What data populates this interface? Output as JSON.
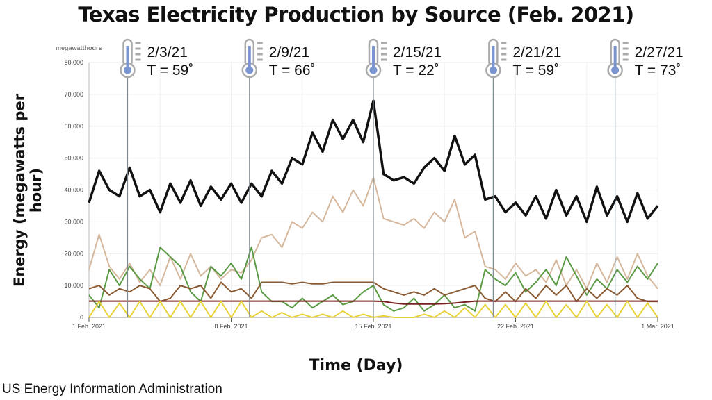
{
  "chart_data": {
    "type": "line",
    "title": "Texas Electricity Production by Source (Feb. 2021)",
    "xlabel": "Time (Day)",
    "ylabel": "Energy (megawatts per hour)",
    "unit_label": "megawatthours",
    "source": "US Energy Information Administration",
    "xlim": [
      "2021-02-01",
      "2021-03-01"
    ],
    "ylim": [
      0,
      80000
    ],
    "grid": true,
    "legend": "none",
    "x_ticks": [
      {
        "date": "2021-02-01",
        "label": "1 Feb. 2021"
      },
      {
        "date": "2021-02-08",
        "label": "8 Feb. 2021"
      },
      {
        "date": "2021-02-15",
        "label": "15 Feb. 2021"
      },
      {
        "date": "2021-02-22",
        "label": "22 Feb. 2021"
      },
      {
        "date": "2021-03-01",
        "label": "1 Mar. 2021"
      }
    ],
    "y_ticks": [
      0,
      10000,
      20000,
      30000,
      40000,
      50000,
      60000,
      70000,
      80000
    ],
    "y_tick_labels": [
      "0",
      "10,000",
      "20,000",
      "30,000",
      "40,000",
      "50,000",
      "60,000",
      "70,000",
      "80,000"
    ],
    "x_step_days": 0.5,
    "series": [
      {
        "color": "#111111",
        "values": [
          36000,
          46000,
          40000,
          38000,
          47000,
          38000,
          40000,
          33000,
          42000,
          36000,
          43000,
          35000,
          41000,
          37000,
          42000,
          36000,
          42000,
          38000,
          46000,
          42000,
          50000,
          48000,
          58000,
          52000,
          62000,
          56000,
          62000,
          55000,
          68000,
          45000,
          43000,
          44000,
          42000,
          47000,
          50000,
          46000,
          57000,
          48000,
          51000,
          37000,
          38000,
          33000,
          36000,
          32000,
          38000,
          31000,
          40000,
          32000,
          38000,
          30000,
          41000,
          32000,
          38000,
          30000,
          39000,
          31000,
          35000
        ]
      },
      {
        "color": "#d4b79c",
        "values": [
          15000,
          26000,
          16000,
          12000,
          17000,
          11000,
          15000,
          10000,
          19000,
          12000,
          20000,
          13000,
          16000,
          12000,
          15000,
          14000,
          18000,
          25000,
          26000,
          22000,
          30000,
          28000,
          33000,
          30000,
          38000,
          33000,
          40000,
          35000,
          44000,
          31000,
          30000,
          29000,
          31000,
          28000,
          33000,
          30000,
          37000,
          25000,
          27000,
          16000,
          15000,
          12000,
          17000,
          13000,
          15000,
          11000,
          18000,
          10000,
          15000,
          9000,
          17000,
          11000,
          19000,
          12000,
          20000,
          13000,
          9000
        ]
      },
      {
        "color": "#5b9a45",
        "values": [
          7000,
          3000,
          15000,
          10000,
          16000,
          12000,
          9000,
          22000,
          19000,
          16000,
          8000,
          5000,
          16000,
          13000,
          17000,
          12000,
          22000,
          8000,
          5000,
          5000,
          3000,
          6000,
          3000,
          5000,
          7000,
          4000,
          5000,
          8000,
          10000,
          4000,
          2000,
          3000,
          6000,
          2000,
          4000,
          7000,
          3000,
          4000,
          2000,
          15000,
          12000,
          10000,
          14000,
          8000,
          11000,
          15000,
          10000,
          19000,
          13000,
          7000,
          12000,
          9000,
          15000,
          11000,
          16000,
          12000,
          17000
        ]
      },
      {
        "color": "#8a5a32",
        "values": [
          9000,
          10000,
          7000,
          9000,
          8000,
          10000,
          9000,
          5000,
          6000,
          10000,
          9000,
          10000,
          6000,
          11000,
          8000,
          9000,
          6000,
          11000,
          11000,
          11000,
          10500,
          11000,
          10500,
          10500,
          11000,
          11000,
          11000,
          11000,
          11000,
          9000,
          8000,
          7000,
          8000,
          7000,
          9000,
          7000,
          8000,
          9000,
          10000,
          6000,
          5000,
          8000,
          5000,
          9000,
          6000,
          10000,
          7000,
          10000,
          5000,
          9000,
          6000,
          9000,
          7000,
          10000,
          6000,
          5000,
          5000
        ]
      },
      {
        "color": "#7a1f1f",
        "values": [
          5100,
          5100,
          5100,
          5100,
          5100,
          5100,
          5100,
          5100,
          5100,
          5100,
          5100,
          5100,
          5100,
          5100,
          5100,
          5100,
          5100,
          5100,
          5100,
          5100,
          5100,
          5100,
          5100,
          5100,
          5100,
          5100,
          5100,
          5100,
          5100,
          5000,
          4500,
          4200,
          4200,
          4200,
          4200,
          4300,
          4500,
          4800,
          5100,
          5100,
          5100,
          5100,
          5100,
          5100,
          5100,
          5100,
          5100,
          5100,
          5100,
          5100,
          5100,
          5100,
          5100,
          5100,
          5100,
          5100,
          5100
        ]
      },
      {
        "color": "#e8d33a",
        "values": [
          0,
          5000,
          0,
          4500,
          0,
          5000,
          0,
          5000,
          0,
          5000,
          0,
          5000,
          0,
          5000,
          0,
          5000,
          0,
          2000,
          0,
          1500,
          0,
          1000,
          0,
          1000,
          0,
          2000,
          0,
          1000,
          0,
          500,
          0,
          0,
          0,
          1000,
          0,
          2000,
          0,
          3000,
          0,
          4000,
          0,
          4000,
          0,
          4500,
          0,
          5000,
          0,
          4000,
          0,
          5000,
          0,
          4000,
          0,
          5000,
          0,
          4500,
          0
        ]
      }
    ],
    "annotations": [
      {
        "date": "2021-02-03",
        "day_offset": 1.9,
        "label": "2/3/21",
        "temp": "T = 59˚"
      },
      {
        "date": "2021-02-09",
        "day_offset": 7.9,
        "label": "2/9/21",
        "temp": "T = 66˚"
      },
      {
        "date": "2021-02-15",
        "day_offset": 14,
        "label": "2/15/21",
        "temp": "T = 22˚"
      },
      {
        "date": "2021-02-21",
        "day_offset": 19.9,
        "label": "2/21/21",
        "temp": "T = 59˚"
      },
      {
        "date": "2021-02-27",
        "day_offset": 25.9,
        "label": "2/27/21",
        "temp": "T = 73˚"
      }
    ],
    "annotation_icon": "thermometer-icon"
  }
}
